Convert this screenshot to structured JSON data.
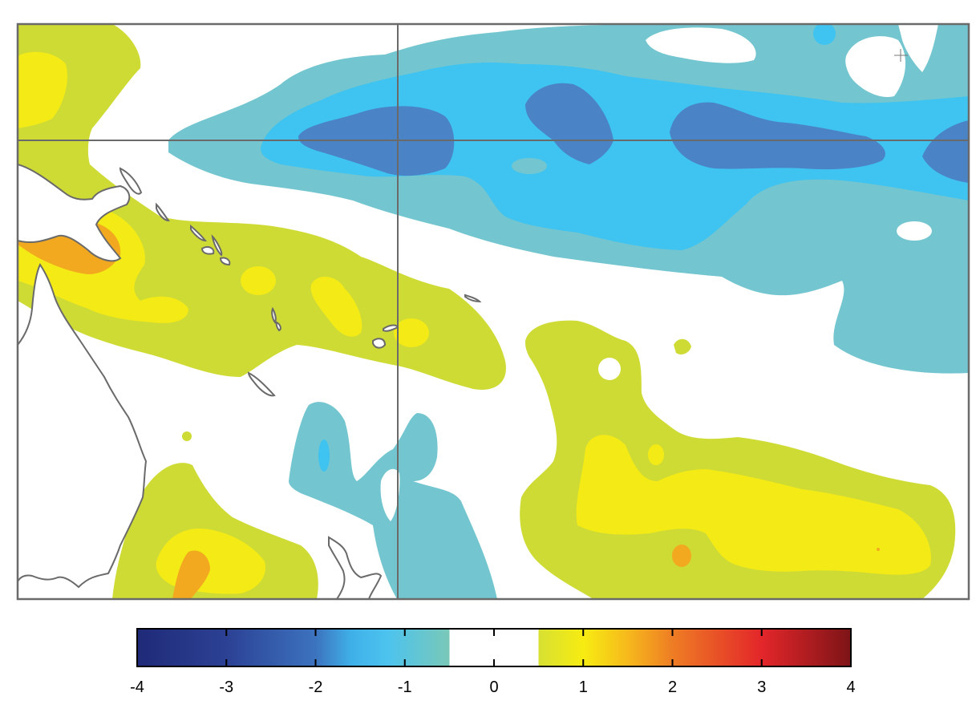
{
  "map": {
    "colors": {
      "neg_1": "#73c6cf",
      "neg_2": "#3fc3f0",
      "neg_3": "#4a84c7",
      "neg_strong": "#2a5aa8",
      "pos_1": "#cfdb35",
      "pos_2": "#f3ea16",
      "pos_3": "#f2a91f",
      "coast": "#6a6a6a",
      "frame": "#6a6a6a",
      "land": "#ffffff"
    }
  },
  "colorbar": {
    "min": -4,
    "max": 4,
    "neutral_range": [
      -0.5,
      0.5
    ],
    "ticks": [
      "-4",
      "-3",
      "-2",
      "-1",
      "0",
      "1",
      "2",
      "3",
      "4"
    ],
    "stops": [
      {
        "v": -4.0,
        "c": "#1f2a78"
      },
      {
        "v": -3.0,
        "c": "#2c4194"
      },
      {
        "v": -2.0,
        "c": "#3c73bf"
      },
      {
        "v": -1.6,
        "c": "#3fb0e8"
      },
      {
        "v": -1.2,
        "c": "#4cc3ef"
      },
      {
        "v": -0.5,
        "c": "#79c8b8"
      },
      {
        "v": 0.5,
        "c": "#d7e032"
      },
      {
        "v": 1.0,
        "c": "#f7ec12"
      },
      {
        "v": 1.5,
        "c": "#f6b91c"
      },
      {
        "v": 2.0,
        "c": "#ee7d24"
      },
      {
        "v": 3.0,
        "c": "#e3262a"
      },
      {
        "v": 4.0,
        "c": "#7d1417"
      }
    ]
  }
}
